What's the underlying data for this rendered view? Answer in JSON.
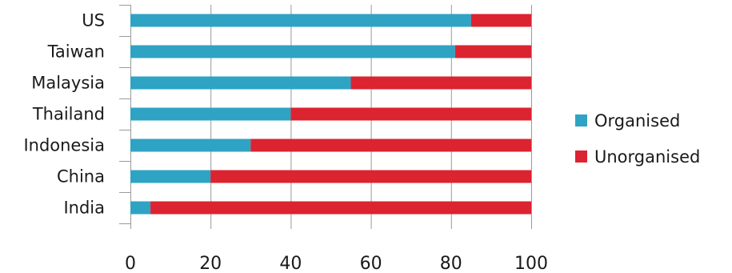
{
  "chart_data": {
    "type": "bar",
    "orientation": "horizontal",
    "stacked": true,
    "categories": [
      "US",
      "Taiwan",
      "Malaysia",
      "Thailand",
      "Indonesia",
      "China",
      "India"
    ],
    "series": [
      {
        "name": "Organised",
        "values": [
          85,
          81,
          55,
          40,
          30,
          20,
          5
        ]
      },
      {
        "name": "Unorganised",
        "values": [
          15,
          19,
          45,
          60,
          70,
          80,
          95
        ]
      }
    ],
    "title": "",
    "xlabel": "",
    "ylabel": "",
    "xlim": [
      0,
      100
    ],
    "xticks": [
      0,
      20,
      40,
      60,
      80,
      100
    ],
    "grid": true,
    "legend_position": "right"
  },
  "colors": {
    "Organised": "#2ea3c4",
    "Unorganised": "#dc2330"
  }
}
